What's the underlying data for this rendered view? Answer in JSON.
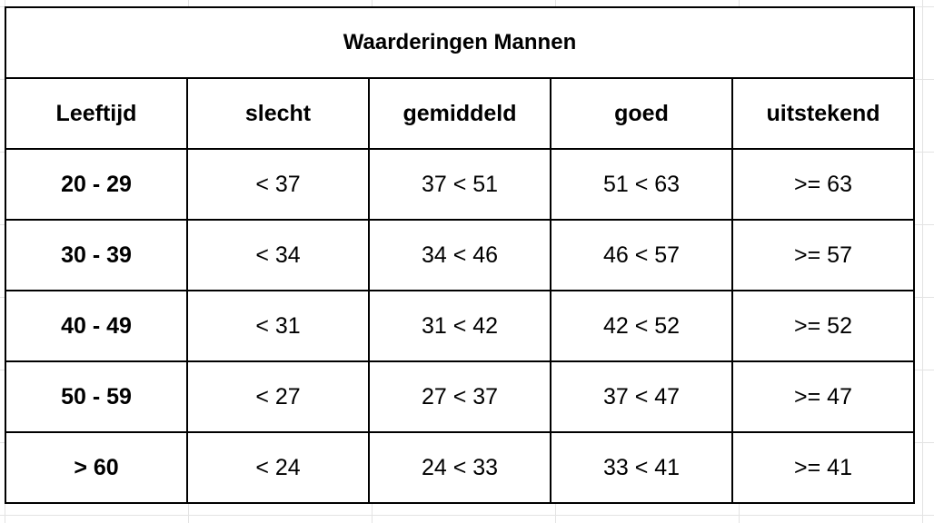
{
  "table": {
    "title": "Waarderingen Mannen",
    "headers": [
      "Leeftijd",
      "slecht",
      "gemiddeld",
      "goed",
      "uitstekend"
    ],
    "rows": [
      [
        "20 - 29",
        "< 37",
        "37 < 51",
        "51 < 63",
        ">= 63"
      ],
      [
        "30 - 39",
        "< 34",
        "34 < 46",
        "46 < 57",
        ">= 57"
      ],
      [
        "40 - 49",
        "< 31",
        "31 < 42",
        "42 < 52",
        ">= 52"
      ],
      [
        "50 - 59",
        "< 27",
        "27 < 37",
        "37 < 47",
        ">= 47"
      ],
      [
        "> 60",
        "< 24",
        "24 < 33",
        "33 < 41",
        ">= 41"
      ]
    ]
  }
}
